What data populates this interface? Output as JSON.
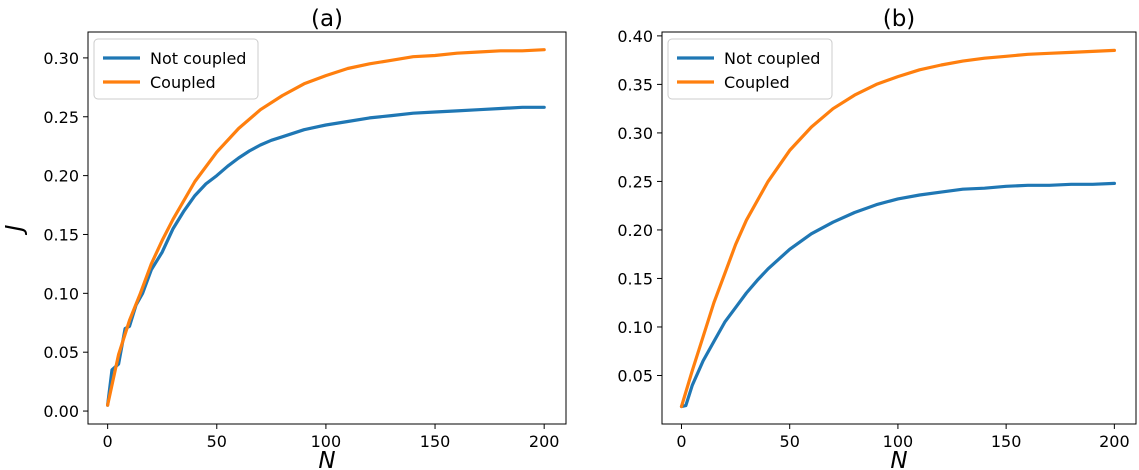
{
  "chart_data": [
    {
      "type": "line",
      "title": "(a)",
      "xlabel": "N",
      "ylabel": "J",
      "xlim": [
        -9,
        210
      ],
      "ylim": [
        -0.011,
        0.322
      ],
      "xticks": [
        0,
        50,
        100,
        150,
        200
      ],
      "xtick_labels": [
        "0",
        "50",
        "100",
        "150",
        "200"
      ],
      "yticks": [
        0.0,
        0.05,
        0.1,
        0.15,
        0.2,
        0.25,
        0.3
      ],
      "ytick_labels": [
        "0.00",
        "0.05",
        "0.10",
        "0.15",
        "0.20",
        "0.25",
        "0.30"
      ],
      "grid": false,
      "legend_position": "top-left",
      "series": [
        {
          "name": "Not coupled",
          "color": "#1f77b4",
          "x": [
            0,
            2,
            5,
            8,
            10,
            13,
            16,
            20,
            25,
            30,
            35,
            40,
            45,
            50,
            55,
            60,
            65,
            70,
            75,
            80,
            90,
            100,
            110,
            120,
            130,
            140,
            150,
            160,
            170,
            180,
            190,
            200
          ],
          "y": [
            0.005,
            0.035,
            0.04,
            0.07,
            0.072,
            0.09,
            0.1,
            0.12,
            0.135,
            0.155,
            0.17,
            0.183,
            0.193,
            0.2,
            0.208,
            0.215,
            0.221,
            0.226,
            0.23,
            0.233,
            0.239,
            0.243,
            0.246,
            0.249,
            0.251,
            0.253,
            0.254,
            0.255,
            0.256,
            0.257,
            0.258,
            0.258
          ]
        },
        {
          "name": "Coupled",
          "color": "#ff7f0e",
          "x": [
            0,
            5,
            10,
            15,
            20,
            25,
            30,
            40,
            50,
            60,
            70,
            80,
            90,
            100,
            110,
            120,
            130,
            140,
            150,
            160,
            170,
            180,
            190,
            200
          ],
          "y": [
            0.005,
            0.048,
            0.077,
            0.1,
            0.125,
            0.145,
            0.163,
            0.195,
            0.22,
            0.24,
            0.256,
            0.268,
            0.278,
            0.285,
            0.291,
            0.295,
            0.298,
            0.301,
            0.302,
            0.304,
            0.305,
            0.306,
            0.306,
            0.307
          ]
        }
      ]
    },
    {
      "type": "line",
      "title": "(b)",
      "xlabel": "N",
      "ylabel": "",
      "xlim": [
        -9,
        210
      ],
      "ylim": [
        0.0,
        0.404
      ],
      "xticks": [
        0,
        50,
        100,
        150,
        200
      ],
      "xtick_labels": [
        "0",
        "50",
        "100",
        "150",
        "200"
      ],
      "yticks": [
        0.05,
        0.1,
        0.15,
        0.2,
        0.25,
        0.3,
        0.35,
        0.4
      ],
      "ytick_labels": [
        "0.05",
        "0.10",
        "0.15",
        "0.20",
        "0.25",
        "0.30",
        "0.35",
        "0.40"
      ],
      "grid": false,
      "legend_position": "top-left",
      "series": [
        {
          "name": "Not coupled",
          "color": "#1f77b4",
          "x": [
            0,
            2,
            5,
            8,
            10,
            15,
            20,
            25,
            30,
            35,
            40,
            50,
            60,
            70,
            80,
            90,
            100,
            110,
            120,
            130,
            140,
            150,
            160,
            170,
            180,
            190,
            200
          ],
          "y": [
            0.018,
            0.019,
            0.04,
            0.055,
            0.065,
            0.085,
            0.105,
            0.12,
            0.135,
            0.148,
            0.16,
            0.18,
            0.196,
            0.208,
            0.218,
            0.226,
            0.232,
            0.236,
            0.239,
            0.242,
            0.243,
            0.245,
            0.246,
            0.246,
            0.247,
            0.247,
            0.248
          ]
        },
        {
          "name": "Coupled",
          "color": "#ff7f0e",
          "x": [
            0,
            5,
            10,
            15,
            20,
            25,
            30,
            40,
            50,
            60,
            70,
            80,
            90,
            100,
            110,
            120,
            130,
            140,
            150,
            160,
            170,
            180,
            190,
            200
          ],
          "y": [
            0.018,
            0.055,
            0.09,
            0.125,
            0.155,
            0.185,
            0.21,
            0.25,
            0.282,
            0.306,
            0.325,
            0.339,
            0.35,
            0.358,
            0.365,
            0.37,
            0.374,
            0.377,
            0.379,
            0.381,
            0.382,
            0.383,
            0.384,
            0.385
          ]
        }
      ]
    }
  ]
}
